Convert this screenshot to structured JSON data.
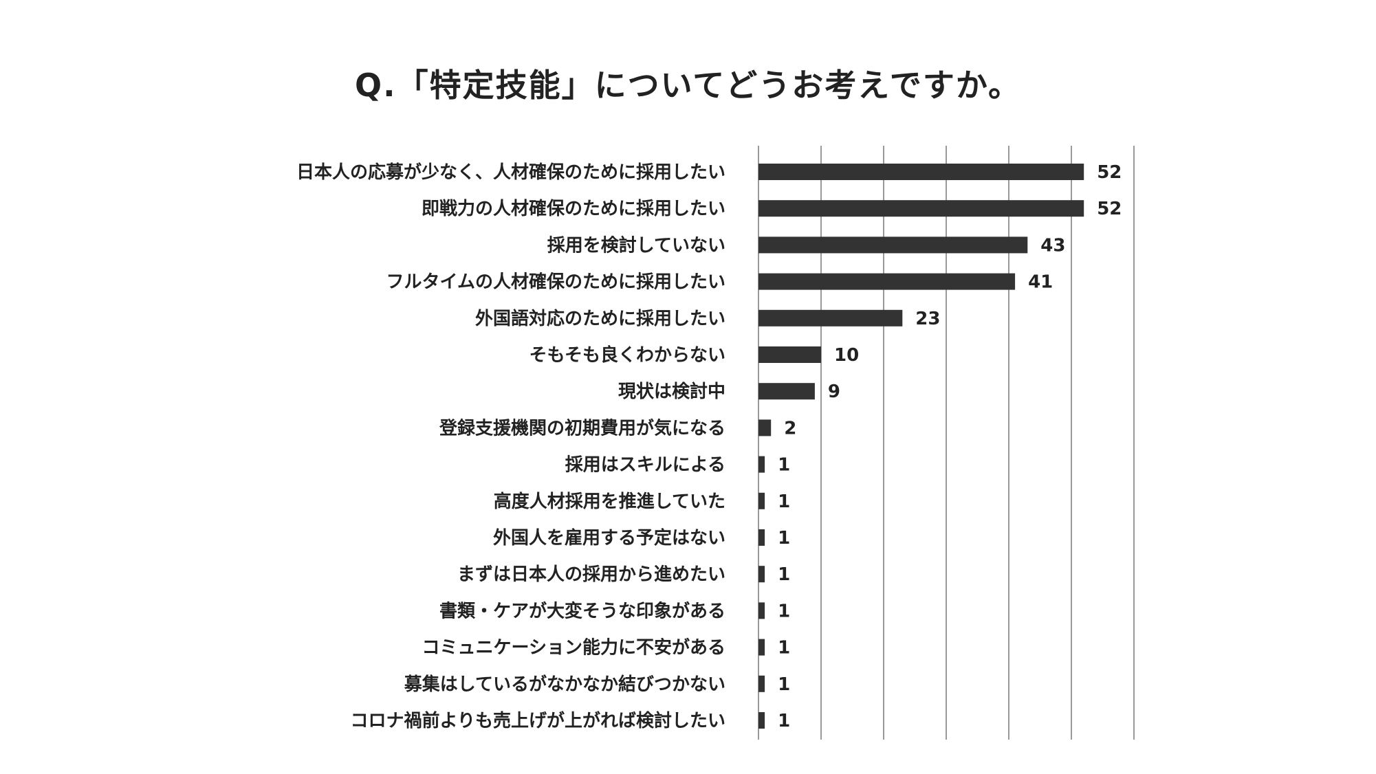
{
  "chart_data": {
    "type": "bar",
    "orientation": "horizontal",
    "title": "Q.「特定技能」についてどうお考えですか。",
    "categories": [
      "日本人の応募が少なく、人材確保のために採用したい",
      "即戦力の人材確保のために採用したい",
      "採用を検討していない",
      "フルタイムの人材確保のために採用したい",
      "外国語対応のために採用したい",
      "そもそも良くわからない",
      "現状は検討中",
      "登録支援機関の初期費用が気になる",
      "採用はスキルによる",
      "高度人材採用を推進していた",
      "外国人を雇用する予定はない",
      "まずは日本人の採用から進めたい",
      "書類・ケアが大変そうな印象がある",
      "コミュニケーション能力に不安がある",
      "募集はしているがなかなか結びつかない",
      "コロナ禍前よりも売上げが上がれば検討したい"
    ],
    "values": [
      52,
      52,
      43,
      41,
      23,
      10,
      9,
      2,
      1,
      1,
      1,
      1,
      1,
      1,
      1,
      1
    ],
    "xlim": [
      0,
      60
    ],
    "grid": true,
    "legend": "none",
    "bar_color": "#333333",
    "grid_color": "#999999"
  }
}
